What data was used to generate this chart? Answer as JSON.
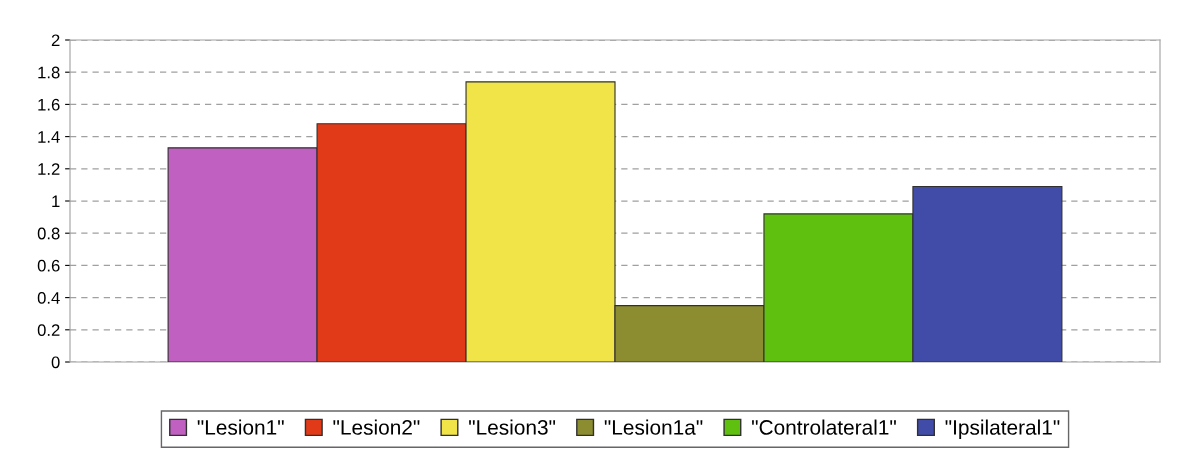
{
  "chart_data": {
    "type": "bar",
    "categories": [
      null
    ],
    "series": [
      {
        "name": "\"Lesion1\"",
        "color": "#c060c0",
        "values": [
          1.33
        ]
      },
      {
        "name": "\"Lesion2\"",
        "color": "#e03a18",
        "values": [
          1.48
        ]
      },
      {
        "name": "\"Lesion3\"",
        "color": "#f0e448",
        "values": [
          1.74
        ]
      },
      {
        "name": "\"Lesion1a\"",
        "color": "#8c8c30",
        "values": [
          0.35
        ]
      },
      {
        "name": "\"Controlateral1\"",
        "color": "#60c010",
        "values": [
          0.92
        ]
      },
      {
        "name": "\"Ipsilateral1\"",
        "color": "#404ca8",
        "values": [
          1.09
        ]
      }
    ],
    "ylim": [
      0,
      2
    ],
    "yticks": [
      0,
      0.2,
      0.4,
      0.6,
      0.8,
      1,
      1.2,
      1.4,
      1.6,
      1.8,
      2
    ],
    "grid": "y",
    "line_style": "dashed",
    "legend": "bottom",
    "tick_labels": "y"
  }
}
